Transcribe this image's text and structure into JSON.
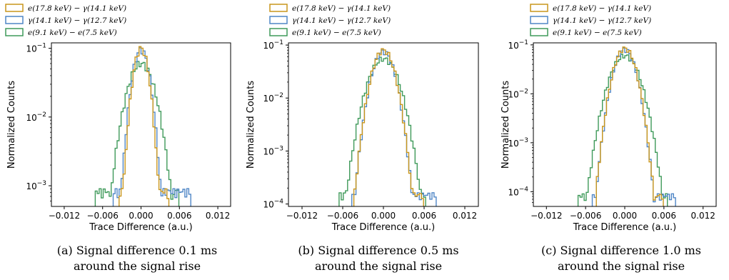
{
  "chart_data": [
    {
      "type": "histogram",
      "caption_line1": "(a) Signal difference 0.1 ms",
      "caption_line2": "around the signal rise",
      "xlabel": "Trace Difference (a.u.)",
      "ylabel": "Normalized Counts",
      "xlim": [
        -0.014,
        0.014
      ],
      "x_ticks": [
        "−0.012",
        "−0.006",
        "0.000",
        "0.006",
        "0.012"
      ],
      "x_tick_values": [
        -0.012,
        -0.006,
        0.0,
        0.006,
        0.012
      ],
      "y_scale": "log",
      "ylim": [
        0.0005,
        0.12
      ],
      "y_ticks": [
        {
          "value": 0.1,
          "base": "10",
          "exp": "−1"
        },
        {
          "value": 0.01,
          "base": "10",
          "exp": "−2"
        },
        {
          "value": 0.001,
          "base": "10",
          "exp": "−3"
        }
      ],
      "legend": "above",
      "series": [
        {
          "name": "e(17.8 keV) − γ(14.1 keV)",
          "color": "#c9961c",
          "sigma": 0.0009,
          "peak": 0.1,
          "xmin": -0.0035,
          "xmax": 0.0045
        },
        {
          "name": "γ(14.1 keV) − γ(12.7 keV)",
          "color": "#4f86c6",
          "sigma": 0.001,
          "peak": 0.095,
          "xmin": -0.0042,
          "xmax": 0.0078
        },
        {
          "name": "e(9.1 keV) − e(7.5 keV)",
          "color": "#3f9a5a",
          "sigma": 0.0016,
          "peak": 0.06,
          "xmin": -0.0072,
          "xmax": 0.0058
        }
      ]
    },
    {
      "type": "histogram",
      "caption_line1": "(b) Signal difference 0.5 ms",
      "caption_line2": "around the signal rise",
      "xlabel": "Trace Difference (a.u.)",
      "ylabel": "Normalized Counts",
      "xlim": [
        -0.014,
        0.014
      ],
      "x_ticks": [
        "−0.012",
        "−0.006",
        "0.000",
        "0.006",
        "0.012"
      ],
      "x_tick_values": [
        -0.012,
        -0.006,
        0.0,
        0.006,
        0.012
      ],
      "y_scale": "log",
      "ylim": [
        9e-05,
        0.11
      ],
      "y_ticks": [
        {
          "value": 0.1,
          "base": "10",
          "exp": "−1"
        },
        {
          "value": 0.01,
          "base": "10",
          "exp": "−2"
        },
        {
          "value": 0.001,
          "base": "10",
          "exp": "−3"
        },
        {
          "value": 0.0001,
          "base": "10",
          "exp": "−4"
        }
      ],
      "legend": "above",
      "series": [
        {
          "name": "e(17.8 keV) − γ(14.1 keV)",
          "color": "#c9961c",
          "sigma": 0.0012,
          "peak": 0.08,
          "xmin": -0.0045,
          "xmax": 0.0058
        },
        {
          "name": "γ(14.1 keV) − γ(12.7 keV)",
          "color": "#4f86c6",
          "sigma": 0.0012,
          "peak": 0.075,
          "xmin": -0.0048,
          "xmax": 0.0078
        },
        {
          "name": "e(9.1 keV) − e(7.5 keV)",
          "color": "#3f9a5a",
          "sigma": 0.0016,
          "peak": 0.055,
          "xmin": -0.0065,
          "xmax": 0.0062
        }
      ]
    },
    {
      "type": "histogram",
      "caption_line1": "(c) Signal difference 1.0 ms",
      "caption_line2": "around the signal rise",
      "xlabel": "Trace Difference (a.u.)",
      "ylabel": "Normalized Counts",
      "xlim": [
        -0.014,
        0.014
      ],
      "x_ticks": [
        "−0.012",
        "−0.006",
        "0.000",
        "0.006",
        "0.012"
      ],
      "x_tick_values": [
        -0.012,
        -0.006,
        0.0,
        0.006,
        0.012
      ],
      "y_scale": "log",
      "ylim": [
        5e-05,
        0.11
      ],
      "y_ticks": [
        {
          "value": 0.1,
          "base": "10",
          "exp": "−1"
        },
        {
          "value": 0.01,
          "base": "10",
          "exp": "−2"
        },
        {
          "value": 0.001,
          "base": "10",
          "exp": "−3"
        },
        {
          "value": 0.0001,
          "base": "10",
          "exp": "−4"
        }
      ],
      "legend": "above",
      "series": [
        {
          "name": "e(17.8 keV) − γ(14.1 keV)",
          "color": "#c9961c",
          "sigma": 0.0012,
          "peak": 0.085,
          "xmin": -0.0045,
          "xmax": 0.006
        },
        {
          "name": "γ(14.1 keV) − γ(12.7 keV)",
          "color": "#4f86c6",
          "sigma": 0.0012,
          "peak": 0.08,
          "xmin": -0.005,
          "xmax": 0.0078
        },
        {
          "name": "e(9.1 keV) − e(7.5 keV)",
          "color": "#3f9a5a",
          "sigma": 0.0016,
          "peak": 0.06,
          "xmin": -0.0072,
          "xmax": 0.0065
        }
      ]
    }
  ]
}
